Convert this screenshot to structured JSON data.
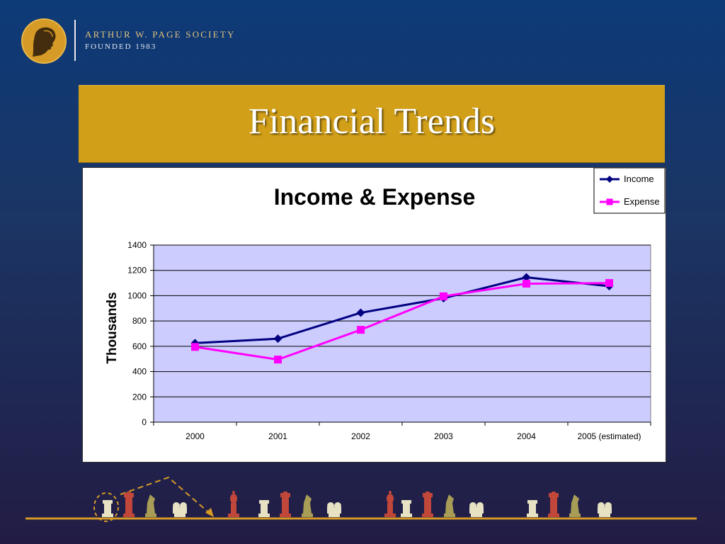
{
  "header": {
    "org_name": "ARTHUR W. PAGE SOCIETY",
    "founded": "FOUNDED 1983"
  },
  "slide": {
    "title": "Financial Trends"
  },
  "colors": {
    "income": "#000080",
    "expense": "#ff00ff",
    "plot_bg": "#ccccff",
    "title_band": "#d19f18"
  },
  "chart_data": {
    "type": "line",
    "title": "Income & Expense",
    "xlabel": "",
    "ylabel": "Thousands",
    "categories": [
      "2000",
      "2001",
      "2002",
      "2003",
      "2004",
      "2005 (estimated)"
    ],
    "ylim": [
      0,
      1400
    ],
    "yticks": [
      0,
      200,
      400,
      600,
      800,
      1000,
      1200,
      1400
    ],
    "grid": true,
    "legend_position": "top-right",
    "series": [
      {
        "name": "Income",
        "values": [
          625,
          660,
          865,
          980,
          1145,
          1075
        ],
        "marker": "diamond"
      },
      {
        "name": "Expense",
        "values": [
          595,
          495,
          730,
          995,
          1095,
          1100
        ],
        "marker": "square"
      }
    ]
  }
}
